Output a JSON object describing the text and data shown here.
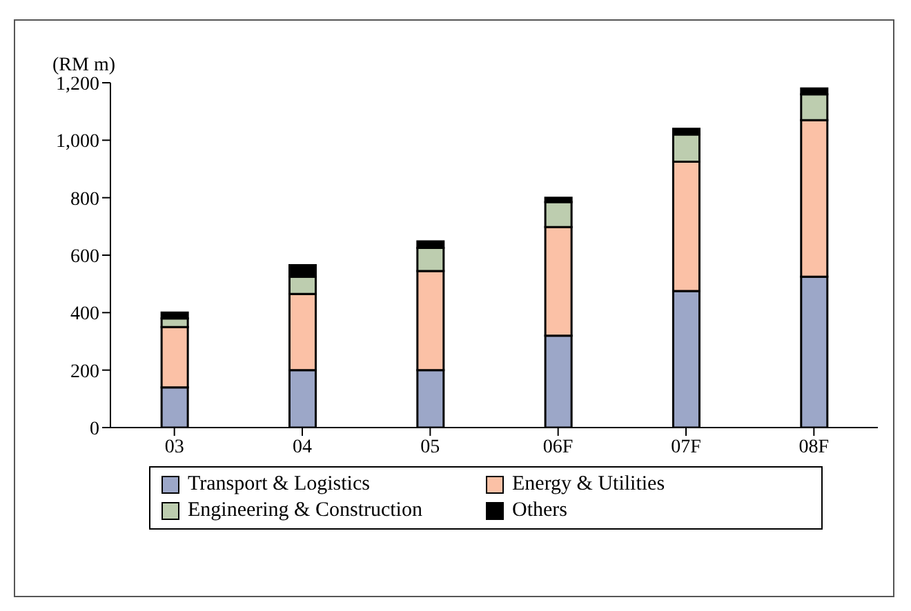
{
  "chart_data": {
    "type": "bar",
    "stacked": true,
    "ylabel": "(RM m)",
    "categories": [
      "03",
      "04",
      "05",
      "06F",
      "07F",
      "08F"
    ],
    "series": [
      {
        "name": "Transport & Logistics",
        "color": "#9ca7c8",
        "values": [
          140,
          200,
          200,
          320,
          475,
          525
        ]
      },
      {
        "name": "Energy & Utilities",
        "color": "#fbc1a6",
        "values": [
          210,
          265,
          345,
          378,
          450,
          545
        ]
      },
      {
        "name": "Engineering & Construction",
        "color": "#bdcdaf",
        "values": [
          30,
          60,
          80,
          87,
          95,
          90
        ]
      },
      {
        "name": "Others",
        "color": "#000000",
        "values": [
          20,
          40,
          23,
          15,
          20,
          20
        ]
      }
    ],
    "ylim": [
      0,
      1200
    ],
    "yticks": [
      0,
      200,
      400,
      600,
      800,
      {
        "value": 1000,
        "label": "1,000"
      },
      {
        "value": 1200,
        "label": "1,200"
      }
    ],
    "grid": false,
    "legend": "bottom"
  }
}
